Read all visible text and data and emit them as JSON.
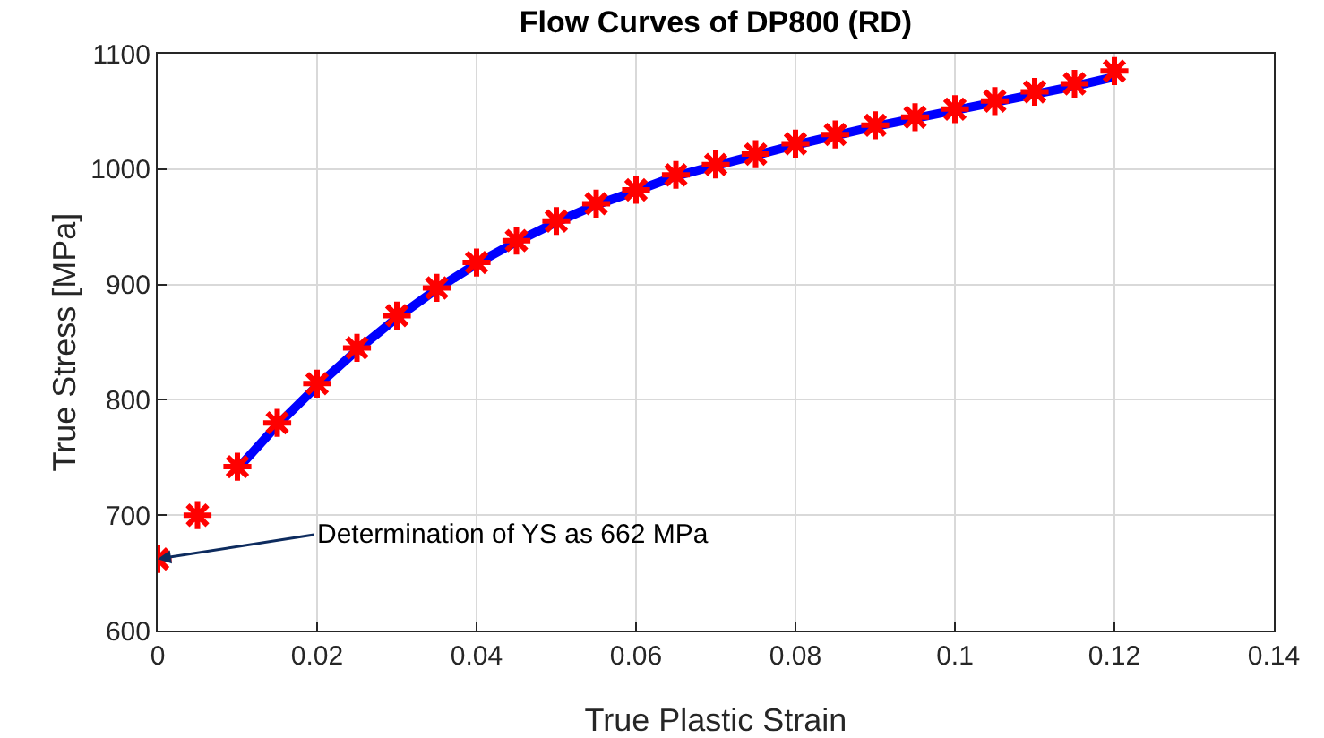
{
  "chart_data": {
    "type": "line",
    "title": "Flow Curves of DP800 (RD)",
    "xlabel": "True Plastic Strain",
    "ylabel": "True Stress [MPa]",
    "xlim": [
      0,
      0.14
    ],
    "xticks": [
      0,
      0.02,
      0.04,
      0.06,
      0.08,
      0.1,
      0.12,
      0.14
    ],
    "ylim": [
      600,
      1100
    ],
    "yticks": [
      600,
      700,
      800,
      900,
      1000,
      1100
    ],
    "grid": true,
    "series": [
      {
        "type": "line",
        "color": "#0000ff",
        "line_style": "solid",
        "marker": "none",
        "x": [
          0.01,
          0.015,
          0.02,
          0.025,
          0.03,
          0.035,
          0.04,
          0.045,
          0.05,
          0.055,
          0.06,
          0.065,
          0.07,
          0.075,
          0.08,
          0.085,
          0.09,
          0.095,
          0.1,
          0.105,
          0.11,
          0.115,
          0.12
        ],
        "values": [
          740,
          778,
          812,
          843,
          871,
          896,
          918,
          937,
          954,
          969,
          981,
          994,
          1003,
          1012,
          1021,
          1029,
          1037,
          1044,
          1051,
          1058,
          1065,
          1072,
          1080
        ]
      },
      {
        "type": "scatter",
        "color": "#ff0000",
        "marker": "cross",
        "x": [
          0,
          0.005,
          0.01,
          0.015,
          0.02,
          0.025,
          0.03,
          0.035,
          0.04,
          0.045,
          0.05,
          0.055,
          0.06,
          0.065,
          0.07,
          0.075,
          0.08,
          0.085,
          0.09,
          0.095,
          0.1,
          0.105,
          0.11,
          0.115,
          0.12
        ],
        "values": [
          662,
          700,
          742,
          780,
          814,
          845,
          873,
          897,
          919,
          938,
          955,
          970,
          982,
          995,
          1004,
          1013,
          1022,
          1030,
          1038,
          1045,
          1052,
          1059,
          1067,
          1074,
          1085
        ]
      }
    ],
    "annotations": [
      {
        "text": "Determination of YS as 662 MPa",
        "x": 0,
        "y": 662
      }
    ]
  }
}
